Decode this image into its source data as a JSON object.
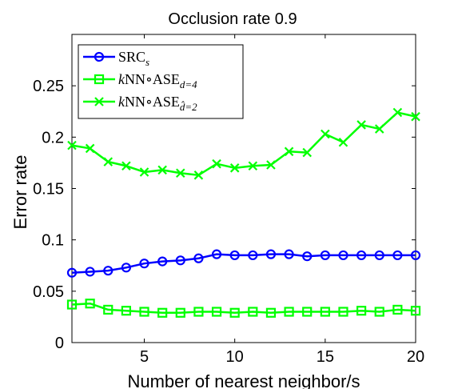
{
  "chart_data": {
    "type": "line",
    "title": "Occlusion rate 0.9",
    "xlabel": "Number of nearest neighbor/s",
    "ylabel": "Error rate",
    "xlim": [
      1,
      20
    ],
    "ylim": [
      0,
      0.3
    ],
    "x_ticks": [
      5,
      10,
      15,
      20
    ],
    "y_ticks": [
      0,
      0.05,
      0.1,
      0.15,
      0.2,
      0.25
    ],
    "x_tick_labels": [
      "5",
      "10",
      "15",
      "20"
    ],
    "y_tick_labels": [
      "0",
      "0.05",
      "0.1",
      "0.15",
      "0.2",
      "0.25"
    ],
    "grid": false,
    "legend_position": "top-left",
    "x": [
      1,
      2,
      3,
      4,
      5,
      6,
      7,
      8,
      9,
      10,
      11,
      12,
      13,
      14,
      15,
      16,
      17,
      18,
      19,
      20
    ],
    "series": [
      {
        "name": "SRC",
        "name_sub": "s",
        "color": "#0000ff",
        "marker": "circle",
        "values": [
          0.068,
          0.069,
          0.07,
          0.073,
          0.077,
          0.079,
          0.08,
          0.082,
          0.086,
          0.085,
          0.085,
          0.086,
          0.086,
          0.084,
          0.085,
          0.085,
          0.085,
          0.085,
          0.085,
          0.085
        ]
      },
      {
        "name": "kNN∘ASE",
        "name_sub": "d=4",
        "color": "#00ff00",
        "marker": "square",
        "values": [
          0.037,
          0.038,
          0.032,
          0.031,
          0.03,
          0.029,
          0.029,
          0.03,
          0.03,
          0.029,
          0.03,
          0.029,
          0.03,
          0.03,
          0.03,
          0.03,
          0.031,
          0.03,
          0.032,
          0.031
        ]
      },
      {
        "name": "kNN∘ASE",
        "name_sub": "d̂=2",
        "color": "#00ff00",
        "marker": "x",
        "values": [
          0.192,
          0.189,
          0.176,
          0.172,
          0.166,
          0.168,
          0.165,
          0.163,
          0.174,
          0.17,
          0.172,
          0.173,
          0.186,
          0.185,
          0.203,
          0.195,
          0.212,
          0.208,
          0.224,
          0.22
        ]
      }
    ]
  }
}
